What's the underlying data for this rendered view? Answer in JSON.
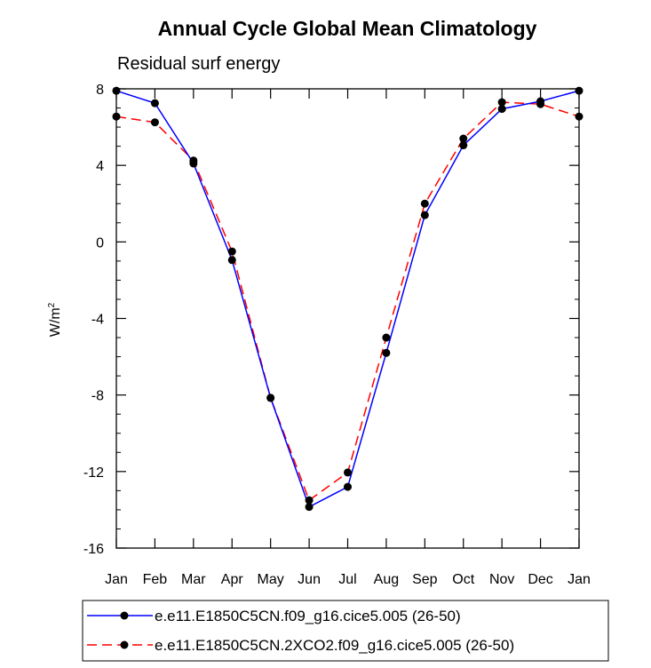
{
  "chart_data": {
    "type": "line",
    "title": "Annual Cycle Global Mean Climatology",
    "subtitle": "Residual surf energy",
    "xlabel": "",
    "ylabel": "W/m",
    "ylabel_superscript": "2",
    "categories": [
      "Jan",
      "Feb",
      "Mar",
      "Apr",
      "May",
      "Jun",
      "Jul",
      "Aug",
      "Sep",
      "Oct",
      "Nov",
      "Dec",
      "Jan"
    ],
    "ylim": [
      -16,
      8
    ],
    "yticks": [
      "8",
      "4",
      "0",
      "-4",
      "-8",
      "-12",
      "-16"
    ],
    "ytick_values": [
      8,
      4,
      0,
      -4,
      -8,
      -12,
      -16
    ],
    "series": [
      {
        "name": "e.e11.E1850C5CN.f09_g16.cice5.005 (26-50)",
        "color": "#0000ff",
        "dash": "solid",
        "values": [
          7.9,
          7.25,
          4.1,
          -0.95,
          -8.15,
          -13.85,
          -12.8,
          -5.8,
          1.4,
          5.05,
          6.95,
          7.35,
          7.9
        ]
      },
      {
        "name": "e.e11.E1850C5CN.2XCO2.f09_g16.cice5.005 (26-50)",
        "color": "#ff0000",
        "dash": "dashed",
        "values": [
          6.55,
          6.25,
          4.25,
          -0.5,
          -8.15,
          -13.5,
          -12.05,
          -5.0,
          2.0,
          5.4,
          7.3,
          7.2,
          6.55
        ]
      }
    ],
    "marker": "filled-circle",
    "marker_color": "#000000",
    "legend_position": "bottom"
  }
}
